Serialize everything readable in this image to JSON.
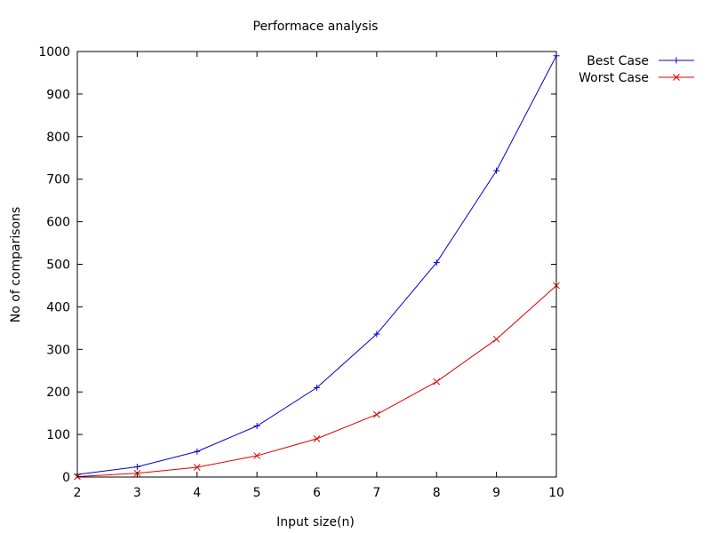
{
  "chart_data": {
    "type": "line",
    "title": "Performace analysis",
    "xlabel": "Input size(n)",
    "ylabel": "No of comparisons",
    "x": [
      2,
      3,
      4,
      5,
      6,
      7,
      8,
      9,
      10
    ],
    "xlim": [
      2,
      10
    ],
    "ylim": [
      0,
      1000
    ],
    "xticks": [
      2,
      3,
      4,
      5,
      6,
      7,
      8,
      9,
      10
    ],
    "yticks": [
      0,
      100,
      200,
      300,
      400,
      500,
      600,
      700,
      800,
      900,
      1000
    ],
    "grid": false,
    "legend": "outside-top-right",
    "series": [
      {
        "name": "Best Case",
        "color": "#0000cc",
        "marker": "plus",
        "values": [
          6,
          24,
          60,
          120,
          210,
          336,
          504,
          720,
          990
        ]
      },
      {
        "name": "Worst Case",
        "color": "#dd0000",
        "marker": "cross",
        "values": [
          1,
          9,
          23,
          50,
          90,
          147,
          224,
          324,
          450
        ]
      }
    ]
  }
}
